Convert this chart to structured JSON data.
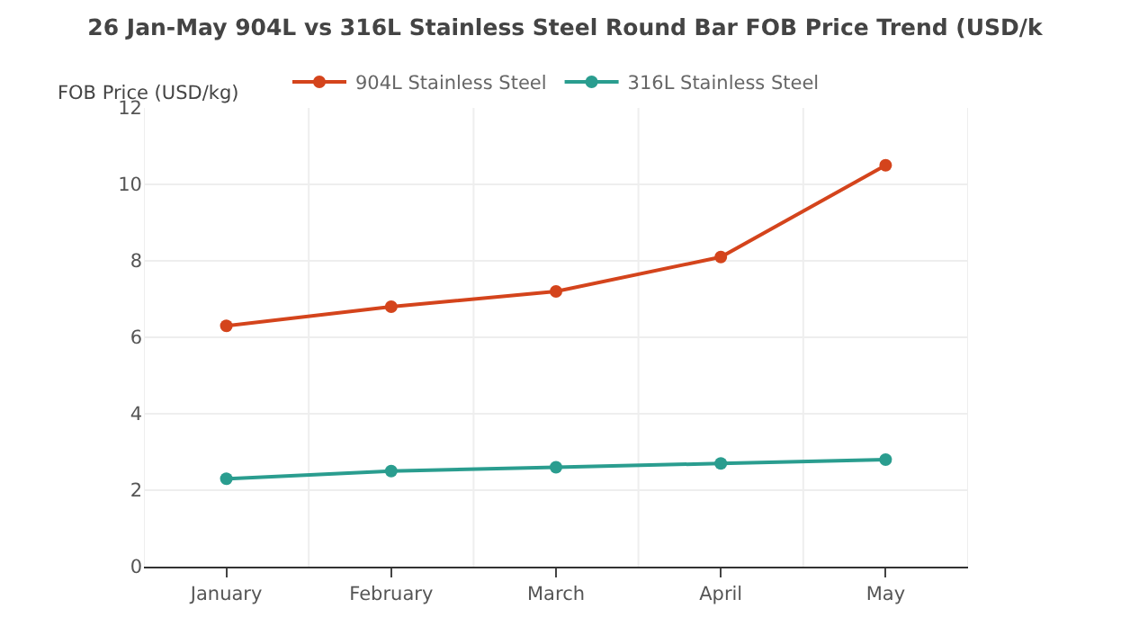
{
  "chart_data": {
    "type": "line",
    "title": "26 Jan-May 904L vs 316L Stainless Steel Round Bar FOB Price Trend (USD/k",
    "ylabel": "FOB Price (USD/kg)",
    "categories": [
      "January",
      "February",
      "March",
      "April",
      "May"
    ],
    "series": [
      {
        "name": "904L Stainless Steel",
        "color": "#d4441c",
        "values": [
          6.3,
          6.8,
          7.2,
          8.1,
          10.5
        ]
      },
      {
        "name": "316L Stainless Steel",
        "color": "#2a9d8f",
        "values": [
          2.3,
          2.5,
          2.6,
          2.7,
          2.8
        ]
      }
    ],
    "ylim": [
      0,
      12
    ],
    "yticks": [
      0,
      2,
      4,
      6,
      8,
      10,
      12
    ],
    "grid": true,
    "legend": "top",
    "marker": "circle",
    "line_style": "solid"
  }
}
